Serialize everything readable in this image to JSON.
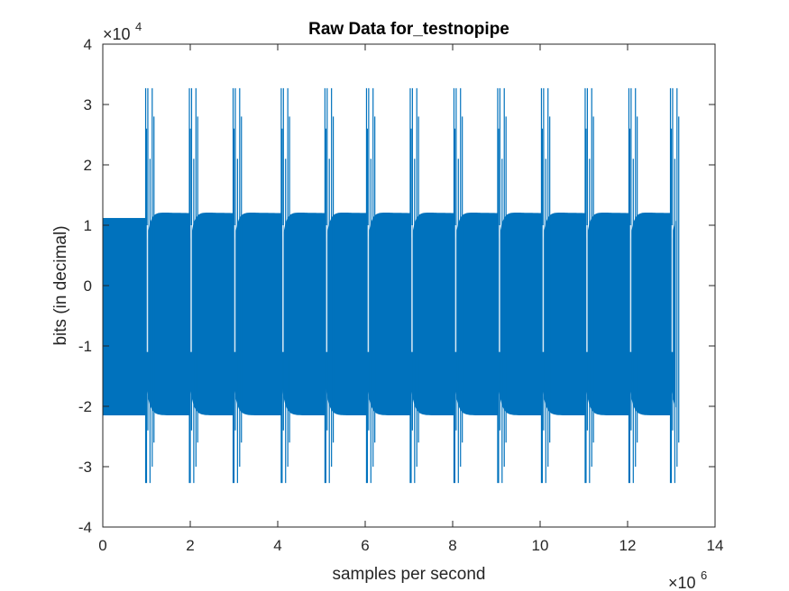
{
  "chart_data": {
    "type": "line",
    "title": "Raw Data for_testnopipe",
    "xlabel": "samples per second",
    "ylabel": "bits (in decimal)",
    "x_exponent": {
      "base": "×10",
      "power": "6"
    },
    "y_exponent": {
      "base": "×10",
      "power": "4"
    },
    "xlim": [
      0,
      14
    ],
    "ylim": [
      -4,
      4
    ],
    "x_scale_multiplier": 1000000,
    "y_scale_multiplier": 10000,
    "xticks": [
      "0",
      "2",
      "4",
      "6",
      "8",
      "10",
      "12",
      "14"
    ],
    "yticks": [
      "-4",
      "-3",
      "-2",
      "-1",
      "0",
      "1",
      "2",
      "3",
      "4"
    ],
    "grid": false,
    "series_color": "#0072BD",
    "series": [
      {
        "description_values": "dense oscillating signal; envelope in axis units (x in 1e6 samples, y in 1e4)",
        "baseline_segment": {
          "x": [
            0,
            1.0
          ],
          "upper": 1.12,
          "lower": -2.15
        },
        "bursts": [
          {
            "x": 1.0,
            "pos_peak": 3.27,
            "neg_peak": -3.27
          },
          {
            "x": 2.0,
            "pos_peak": 3.27,
            "neg_peak": -3.27
          },
          {
            "x": 3.0,
            "pos_peak": 3.27,
            "neg_peak": -3.27
          },
          {
            "x": 4.1,
            "pos_peak": 3.27,
            "neg_peak": -3.27
          },
          {
            "x": 5.1,
            "pos_peak": 3.27,
            "neg_peak": -3.27
          },
          {
            "x": 6.05,
            "pos_peak": 3.27,
            "neg_peak": -3.27
          },
          {
            "x": 7.05,
            "pos_peak": 3.27,
            "neg_peak": -3.27
          },
          {
            "x": 8.05,
            "pos_peak": 3.27,
            "neg_peak": -3.27
          },
          {
            "x": 9.05,
            "pos_peak": 3.27,
            "neg_peak": -3.27
          },
          {
            "x": 10.05,
            "pos_peak": 3.27,
            "neg_peak": -3.27
          },
          {
            "x": 11.05,
            "pos_peak": 3.27,
            "neg_peak": -3.27
          },
          {
            "x": 12.05,
            "pos_peak": 3.27,
            "neg_peak": -3.27
          },
          {
            "x": 13.0,
            "pos_peak": 3.27,
            "neg_peak": -3.27
          }
        ],
        "plateau_upper": 1.2,
        "plateau_lower": -2.15,
        "end_x": 13.1
      }
    ]
  }
}
